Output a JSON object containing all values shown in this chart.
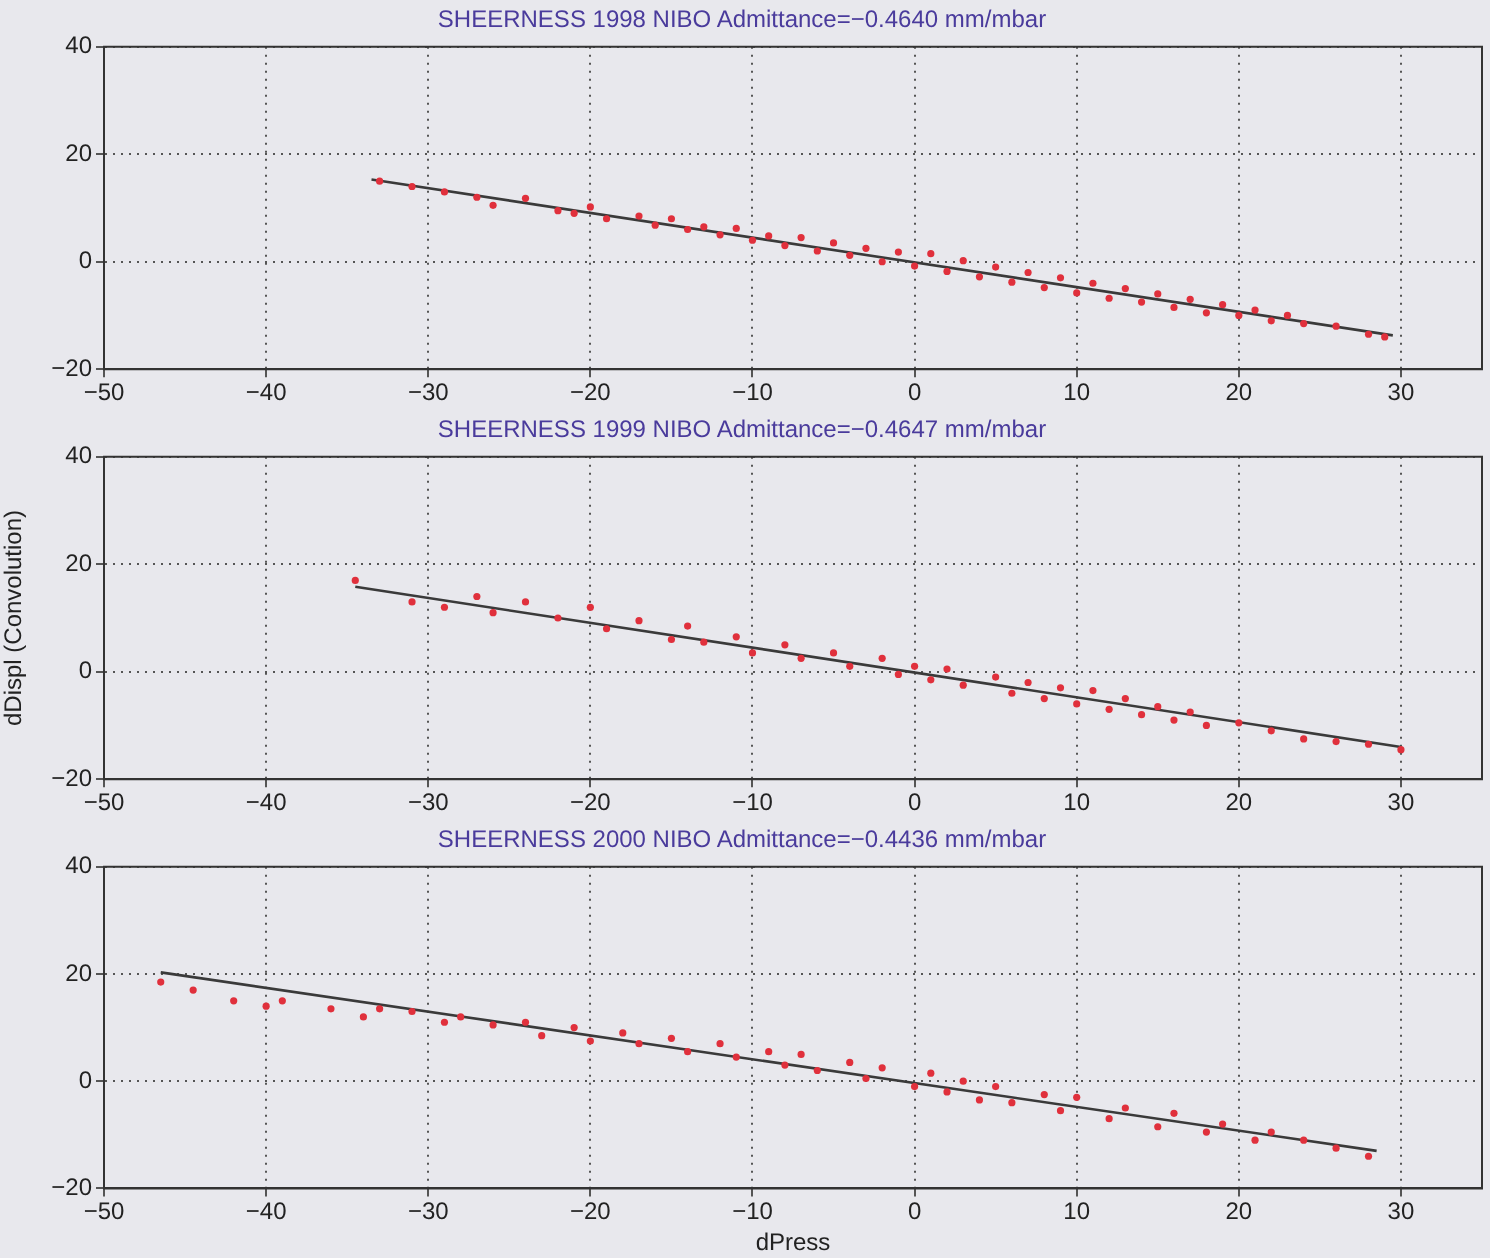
{
  "chart_data": [
    {
      "type": "scatter",
      "title": "SHEERNESS 1998 NIBO Admittance=−0.4640 mm/mbar",
      "xlim": [
        -50,
        35
      ],
      "xticks": [
        -50,
        -40,
        -30,
        -20,
        -10,
        0,
        10,
        20,
        30
      ],
      "ylim": [
        -20,
        40
      ],
      "yticks": [
        -20,
        0,
        20,
        40
      ],
      "grid": true,
      "series": [
        {
          "marker": "circle",
          "color": "#e0303c",
          "x": [
            -33,
            -31,
            -29,
            -27,
            -26,
            -24,
            -22,
            -21,
            -20,
            -19,
            -17,
            -16,
            -15,
            -14,
            -13,
            -12,
            -11,
            -10,
            -9,
            -8,
            -7,
            -6,
            -5,
            -4,
            -3,
            -2,
            -1,
            0,
            1,
            2,
            3,
            4,
            5,
            6,
            7,
            8,
            9,
            10,
            11,
            12,
            13,
            14,
            15,
            16,
            17,
            18,
            19,
            20,
            21,
            22,
            23,
            24,
            26,
            28,
            29
          ],
          "values": [
            15,
            14,
            13,
            12,
            10.5,
            11.8,
            9.5,
            9,
            10.2,
            8,
            8.5,
            6.8,
            8,
            6,
            6.5,
            5,
            6.2,
            4,
            4.8,
            3,
            4.5,
            2,
            3.5,
            1.2,
            2.5,
            0,
            1.8,
            -0.8,
            1.5,
            -1.8,
            0.2,
            -2.8,
            -1,
            -3.8,
            -2,
            -4.8,
            -3,
            -5.8,
            -4,
            -6.8,
            -5,
            -7.5,
            -6,
            -8.5,
            -7,
            -9.5,
            -8,
            -10,
            -9,
            -11,
            -10,
            -11.5,
            -12,
            -13.5,
            -14
          ]
        },
        {
          "type": "line",
          "marker": "none",
          "line_style": "solid",
          "color": "#3a3a3a",
          "x": [
            -33.5,
            29.5
          ],
          "values": [
            15.3,
            -13.7
          ]
        }
      ]
    },
    {
      "type": "scatter",
      "title": "SHEERNESS 1999 NIBO Admittance=−0.4647 mm/mbar",
      "ylabel": "dDispl (Convolution)",
      "xlim": [
        -50,
        35
      ],
      "xticks": [
        -50,
        -40,
        -30,
        -20,
        -10,
        0,
        10,
        20,
        30
      ],
      "ylim": [
        -20,
        40
      ],
      "yticks": [
        -20,
        0,
        20,
        40
      ],
      "grid": true,
      "series": [
        {
          "marker": "circle",
          "color": "#e0303c",
          "x": [
            -34.5,
            -31,
            -29,
            -27,
            -26,
            -24,
            -22,
            -20,
            -19,
            -17,
            -15,
            -14,
            -13,
            -11,
            -10,
            -8,
            -7,
            -5,
            -4,
            -2,
            -1,
            0,
            1,
            2,
            3,
            5,
            6,
            7,
            8,
            9,
            10,
            11,
            12,
            13,
            14,
            15,
            16,
            17,
            18,
            20,
            22,
            24,
            26,
            28,
            30
          ],
          "values": [
            17,
            13,
            12,
            14,
            11,
            13,
            10,
            12,
            8,
            9.5,
            6,
            8.5,
            5.5,
            6.5,
            3.5,
            5,
            2.5,
            3.5,
            1,
            2.5,
            -0.5,
            1,
            -1.5,
            0.5,
            -2.5,
            -1,
            -4,
            -2,
            -5,
            -3,
            -6,
            -3.5,
            -7,
            -5,
            -8,
            -6.5,
            -9,
            -7.5,
            -10,
            -9.5,
            -11,
            -12.5,
            -13,
            -13.5,
            -14.5
          ]
        },
        {
          "type": "line",
          "marker": "none",
          "line_style": "solid",
          "color": "#3a3a3a",
          "x": [
            -34.5,
            30
          ],
          "values": [
            15.8,
            -14
          ]
        }
      ]
    },
    {
      "type": "scatter",
      "title": "SHEERNESS 2000 NIBO Admittance=−0.4436 mm/mbar",
      "xlabel": "dPress",
      "xlim": [
        -50,
        35
      ],
      "xticks": [
        -50,
        -40,
        -30,
        -20,
        -10,
        0,
        10,
        20,
        30
      ],
      "ylim": [
        -20,
        40
      ],
      "yticks": [
        -20,
        0,
        20,
        40
      ],
      "grid": true,
      "series": [
        {
          "marker": "circle",
          "color": "#e0303c",
          "x": [
            -46.5,
            -44.5,
            -42,
            -40,
            -39,
            -36,
            -34,
            -33,
            -31,
            -29,
            -28,
            -26,
            -24,
            -23,
            -21,
            -20,
            -18,
            -17,
            -15,
            -14,
            -12,
            -11,
            -9,
            -8,
            -7,
            -6,
            -4,
            -3,
            -2,
            0,
            1,
            2,
            3,
            4,
            5,
            6,
            8,
            9,
            10,
            12,
            13,
            15,
            16,
            18,
            19,
            21,
            22,
            24,
            26,
            28
          ],
          "values": [
            18.5,
            17,
            15,
            14,
            15,
            13.5,
            12,
            13.5,
            13,
            11,
            12,
            10.5,
            11,
            8.5,
            10,
            7.5,
            9,
            7,
            8,
            5.5,
            7,
            4.5,
            5.5,
            3,
            5,
            2,
            3.5,
            0.5,
            2.5,
            -1,
            1.5,
            -2,
            0,
            -3.5,
            -1,
            -4,
            -2.5,
            -5.5,
            -3,
            -7,
            -5,
            -8.5,
            -6,
            -9.5,
            -8,
            -11,
            -9.5,
            -11,
            -12.5,
            -14
          ]
        },
        {
          "type": "line",
          "marker": "none",
          "line_style": "solid",
          "color": "#3a3a3a",
          "x": [
            -46.5,
            28.5
          ],
          "values": [
            20.3,
            -13
          ]
        }
      ]
    }
  ]
}
